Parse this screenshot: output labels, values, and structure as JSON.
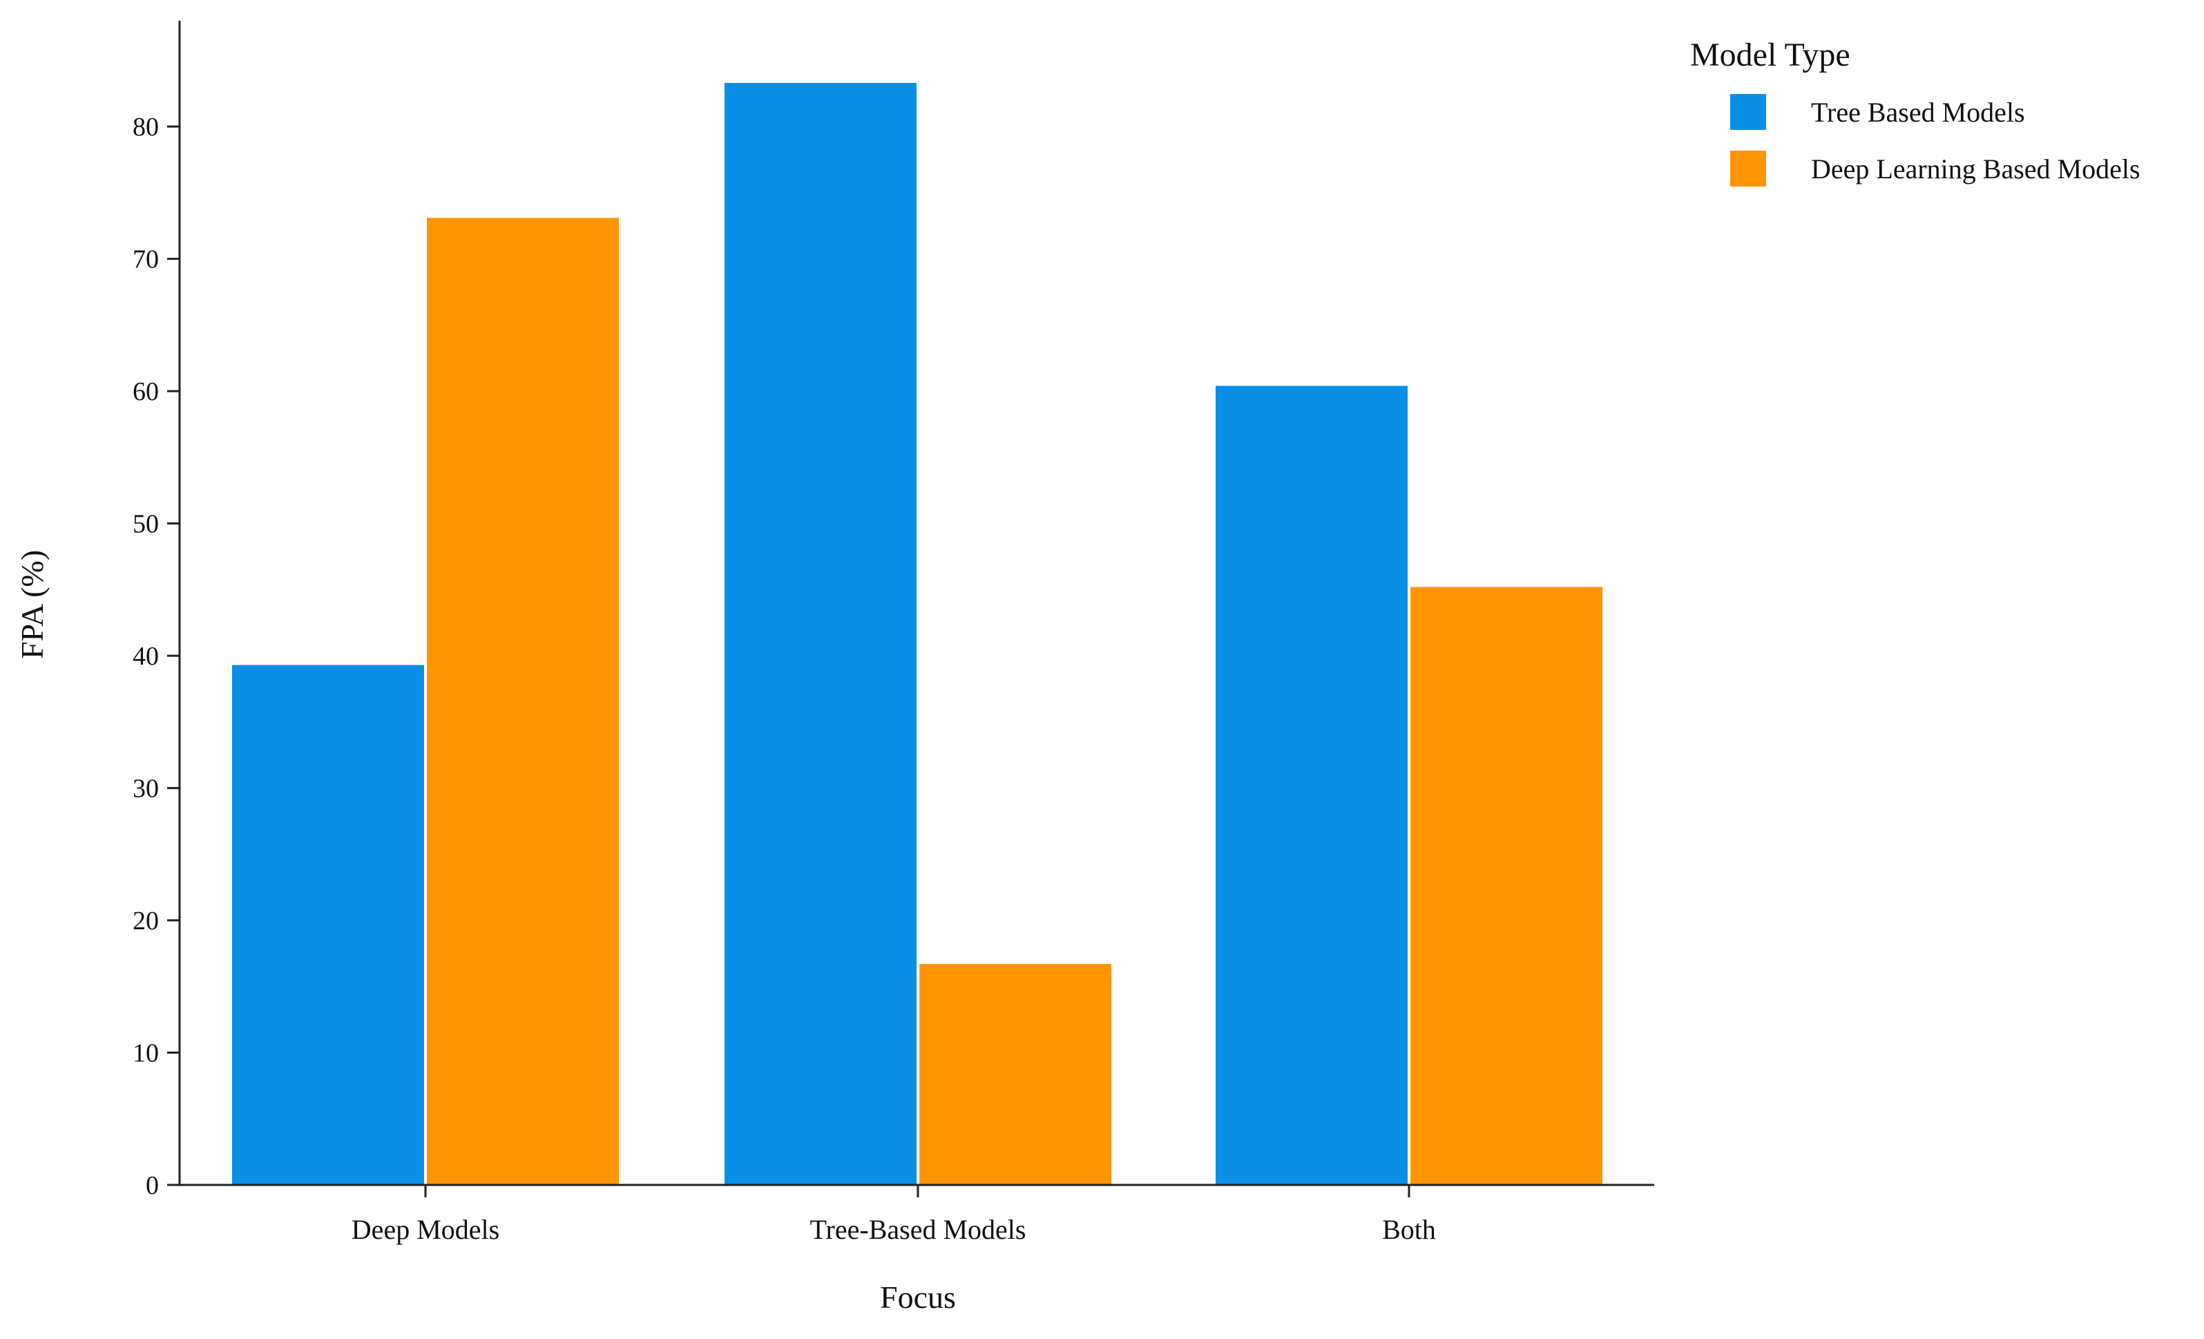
{
  "chart_data": {
    "type": "bar",
    "categories": [
      "Deep Models",
      "Tree-Based Models",
      "Both"
    ],
    "series": [
      {
        "name": "Tree Based Models",
        "values": [
          39.3,
          83.3,
          60.4
        ],
        "color": "#0a8fe6"
      },
      {
        "name": "Deep Learning Based Models",
        "values": [
          73.1,
          16.7,
          45.2
        ],
        "color": "#ff9500"
      }
    ],
    "xlabel": "Focus",
    "ylabel": "FPA (%)",
    "ylim": [
      0,
      88
    ],
    "yticks": [
      0,
      10,
      20,
      30,
      40,
      50,
      60,
      70,
      80
    ],
    "legend": {
      "title": "Model Type",
      "placement": "top-right"
    },
    "grid": false
  }
}
